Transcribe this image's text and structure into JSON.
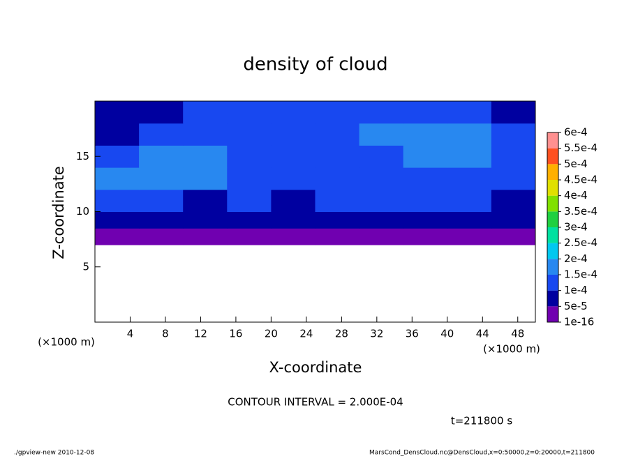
{
  "chart_data": {
    "type": "contour",
    "title": "density of cloud",
    "x_label": "X-coordinate",
    "y_label": "Z-coordinate",
    "x_unit": "(×1000 m)",
    "y_unit": "(×1000 m)",
    "contour_note": "CONTOUR INTERVAL = 2.000E-04",
    "time_note": "t=211800 s",
    "footer_left": "./gpview-new  2010-12-08",
    "footer_right": "MarsCond_DensCloud.nc@DensCloud,x=0:50000,z=0:20000,t=211800",
    "xlim": [
      0,
      50
    ],
    "ylim": [
      0,
      20
    ],
    "xticks": [
      4,
      8,
      12,
      16,
      20,
      24,
      28,
      32,
      36,
      40,
      44,
      48
    ],
    "yticks": [
      5,
      10,
      15
    ],
    "x_bins": [
      0,
      5,
      10,
      15,
      20,
      25,
      30,
      35,
      40,
      45,
      50
    ],
    "z_bins": [
      7,
      8.5,
      10,
      12,
      14,
      16,
      18,
      20
    ],
    "values": [
      [
        3e-05,
        3e-05,
        3e-05,
        3e-05,
        3e-05,
        3e-05,
        3e-05,
        3e-05,
        3e-05,
        3e-05
      ],
      [
        8e-05,
        8e-05,
        8e-05,
        8e-05,
        8e-05,
        8e-05,
        8e-05,
        8e-05,
        8e-05,
        8e-05
      ],
      [
        0.00011,
        0.00011,
        9e-05,
        0.00011,
        9e-05,
        0.00011,
        0.00012,
        0.00012,
        0.00011,
        9e-05
      ],
      [
        0.00016,
        0.00016,
        0.00016,
        0.00011,
        0.00012,
        0.00012,
        0.00012,
        0.00012,
        0.00012,
        0.00011
      ],
      [
        0.00012,
        0.00016,
        0.00016,
        0.00012,
        0.00012,
        0.00012,
        0.00012,
        0.00016,
        0.00016,
        0.00012
      ],
      [
        8e-05,
        0.00012,
        0.00012,
        0.00012,
        0.00012,
        0.00012,
        0.00016,
        0.00016,
        0.00016,
        0.00011
      ],
      [
        8e-05,
        8e-05,
        0.00011,
        0.00011,
        0.00012,
        0.00012,
        0.00012,
        0.00011,
        0.00011,
        8e-05
      ]
    ],
    "levels": [
      {
        "value": 1e-16,
        "label": "1e-16"
      },
      {
        "value": 5e-05,
        "label": "5e-5"
      },
      {
        "value": 0.0001,
        "label": "1e-4"
      },
      {
        "value": 0.00015,
        "label": "1.5e-4"
      },
      {
        "value": 0.0002,
        "label": "2e-4"
      },
      {
        "value": 0.00025,
        "label": "2.5e-4"
      },
      {
        "value": 0.0003,
        "label": "3e-4"
      },
      {
        "value": 0.00035,
        "label": "3.5e-4"
      },
      {
        "value": 0.0004,
        "label": "4e-4"
      },
      {
        "value": 0.00045,
        "label": "4.5e-4"
      },
      {
        "value": 0.0005,
        "label": "5e-4"
      },
      {
        "value": 0.00055,
        "label": "5.5e-4"
      },
      {
        "value": 0.0006,
        "label": "6e-4"
      }
    ],
    "colors": [
      "#7000b0",
      "#0000a0",
      "#1848f0",
      "#2888f0",
      "#00c8f0",
      "#00e0a0",
      "#20d040",
      "#80e000",
      "#e0e000",
      "#ffb000",
      "#ff5020",
      "#ff9090"
    ]
  }
}
